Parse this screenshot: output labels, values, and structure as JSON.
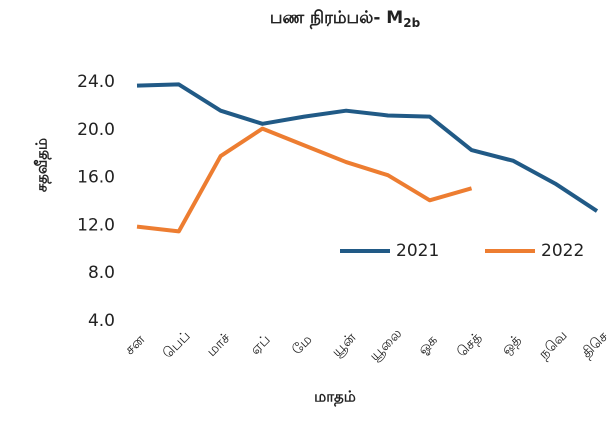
{
  "chart_data": {
    "type": "line",
    "title": "பண நிரம்பல்- M",
    "title_subscript": "2b",
    "y_label": "சதவீதம்",
    "x_label": "மாதம்",
    "categories": [
      "சன",
      "பெப்",
      "மாச்",
      "ஏப்",
      "மே",
      "யூன்",
      "யூலை",
      "ஓக",
      "செத்",
      "ஒத்",
      "நவெ",
      "திசெ"
    ],
    "series": [
      {
        "name": "2021",
        "color": "#215a86",
        "values": [
          23.7,
          23.8,
          21.6,
          20.5,
          21.1,
          21.6,
          21.2,
          21.1,
          18.3,
          17.4,
          15.5,
          13.2
        ]
      },
      {
        "name": "2022",
        "color": "#ed7d31",
        "values": [
          11.9,
          11.5,
          17.8,
          20.1,
          18.7,
          17.3,
          16.2,
          14.1,
          15.1,
          null,
          null,
          null
        ]
      }
    ],
    "ylim": [
      4,
      24
    ],
    "yticks": [
      {
        "value": 4,
        "label": "4.0"
      },
      {
        "value": 8,
        "label": "8.0"
      },
      {
        "value": 12,
        "label": "12.0"
      },
      {
        "value": 16,
        "label": "16.0"
      },
      {
        "value": 20,
        "label": "20.0"
      },
      {
        "value": 24,
        "label": "24.0"
      }
    ],
    "grid": false,
    "legend": "right"
  }
}
